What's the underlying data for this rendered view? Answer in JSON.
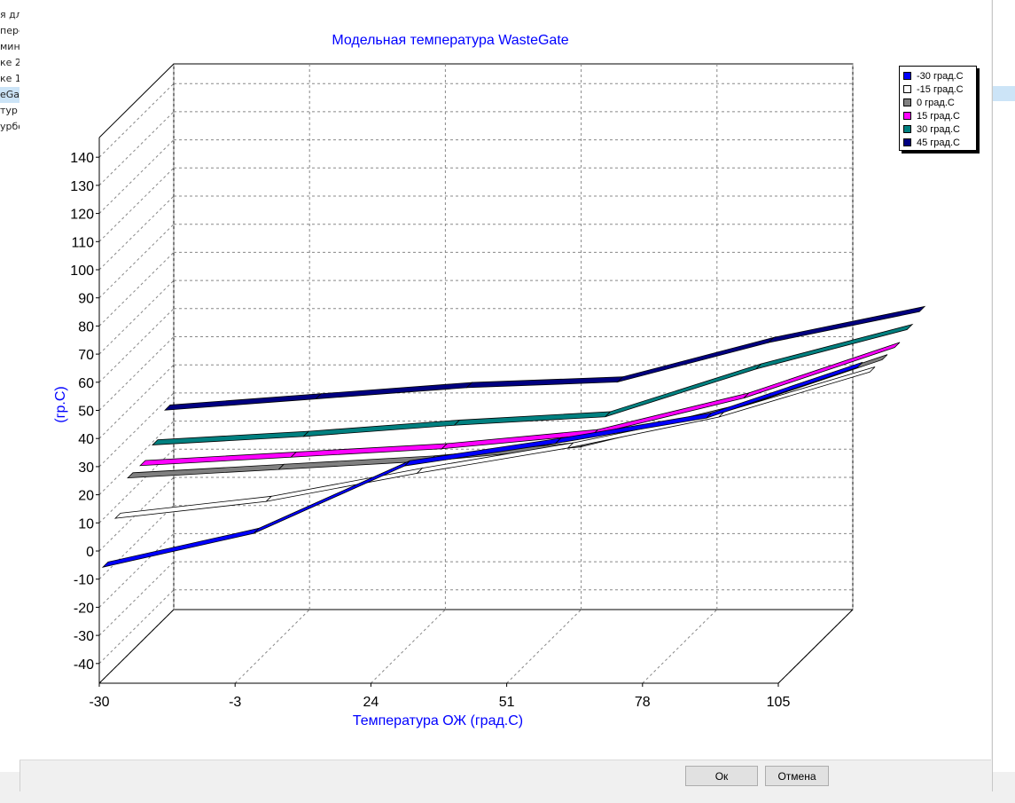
{
  "background_list": {
    "items": [
      "я дл",
      "пере",
      "мины",
      "ке 2",
      "ке 1",
      "eGa",
      "тур",
      "урбо"
    ],
    "selected_index": 5
  },
  "buttons": {
    "ok": "Ок",
    "cancel": "Отмена"
  },
  "colors": {
    "title": "#0000ff",
    "axis_label": "#0000ff"
  },
  "chart_data": {
    "type": "line",
    "title": "Модельная температура WasteGate",
    "xlabel": "Температура ОЖ (град.С)",
    "ylabel": "(гр.С)",
    "x_ticks": [
      -30,
      -3,
      24,
      51,
      78,
      105
    ],
    "y_ticks": [
      -40,
      -30,
      -20,
      -10,
      0,
      10,
      20,
      30,
      40,
      50,
      60,
      70,
      80,
      90,
      100,
      110,
      120,
      130,
      140
    ],
    "xlim": [
      -30,
      105
    ],
    "ylim": [
      -47,
      147
    ],
    "x": [
      -30,
      0,
      30,
      60,
      90,
      120
    ],
    "legend_position": "top-right",
    "grid": true,
    "view": "3d",
    "series": [
      {
        "name": "-30 град.С",
        "color": "#0000ff",
        "values": [
          -7,
          5,
          29,
          37,
          46,
          64
        ]
      },
      {
        "name": "-15 град.С",
        "color": "#ffffff",
        "values": [
          6,
          12,
          22,
          31,
          42,
          58
        ]
      },
      {
        "name": "0 град.С",
        "color": "#808080",
        "values": [
          16,
          19,
          22,
          27,
          40,
          58
        ]
      },
      {
        "name": "15 град.С",
        "color": "#ff00ff",
        "values": [
          16,
          19,
          22,
          27,
          40,
          58
        ]
      },
      {
        "name": "30 град.С",
        "color": "#008080",
        "values": [
          19,
          22,
          26,
          29,
          46,
          60
        ]
      },
      {
        "name": "45 град.С",
        "color": "#000080",
        "values": [
          27,
          31,
          35,
          37,
          51,
          62
        ]
      }
    ]
  }
}
